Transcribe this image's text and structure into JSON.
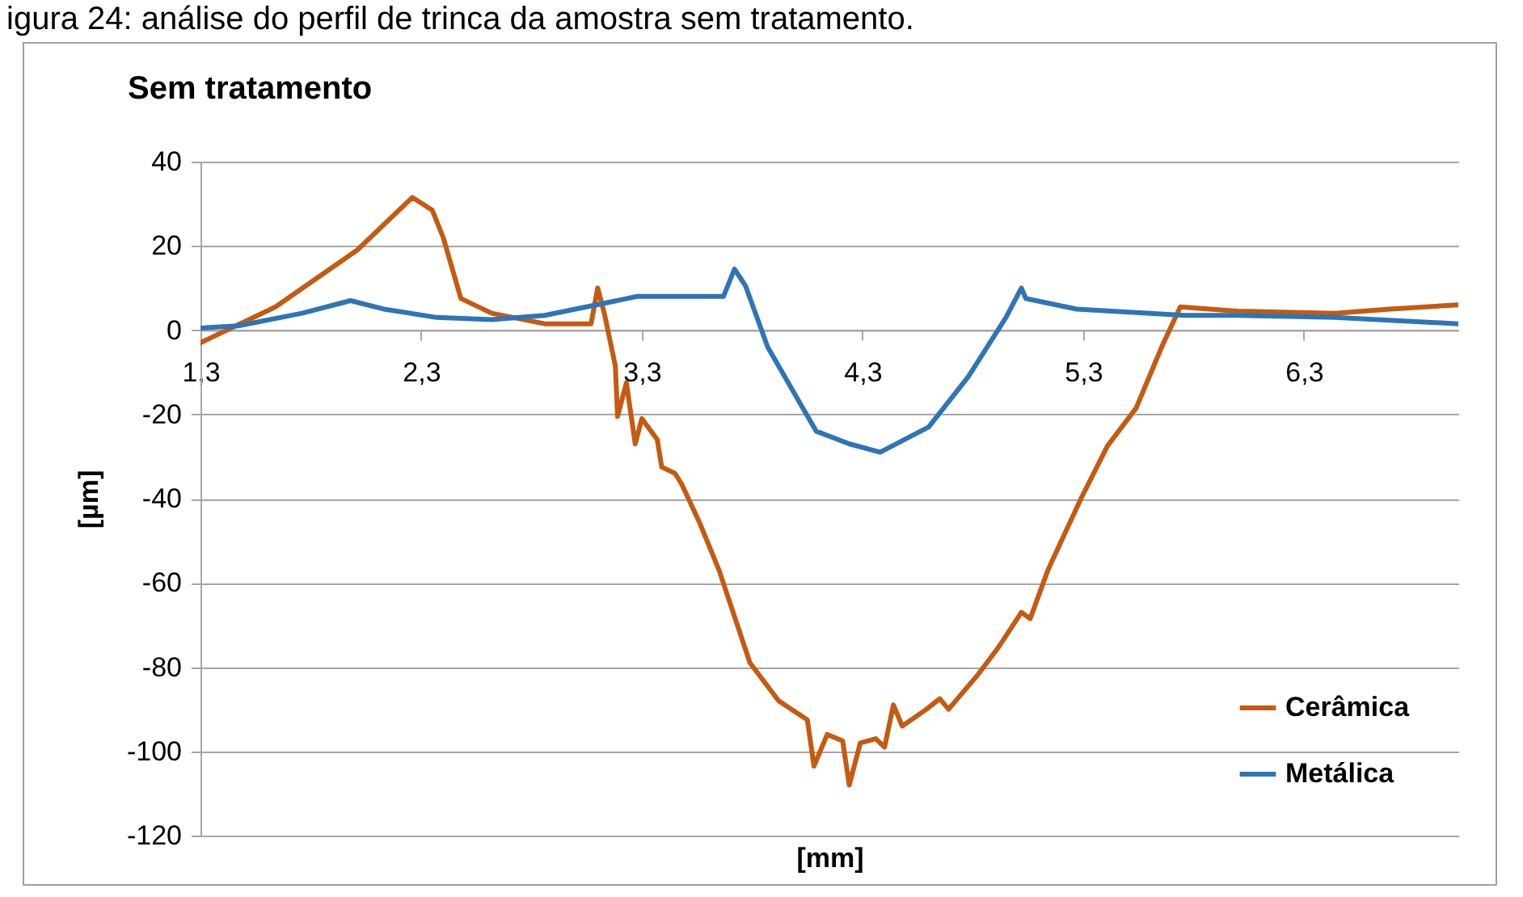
{
  "chart_data": {
    "type": "line",
    "title": "Sem tratamento",
    "xlabel": "[mm]",
    "ylabel": "[µm]",
    "annotations": [
      "igura 24: análise do perfil de trinca da amostra sem tratamento."
    ],
    "xlim": [
      1.3,
      7.0
    ],
    "xticks": [
      {
        "value": 1.3,
        "label": "1,3"
      },
      {
        "value": 2.3,
        "label": "2,3"
      },
      {
        "value": 3.3,
        "label": "3,3"
      },
      {
        "value": 4.3,
        "label": "4,3"
      },
      {
        "value": 5.3,
        "label": "5,3"
      },
      {
        "value": 6.3,
        "label": "6,3"
      }
    ],
    "ylim": [
      -120,
      40
    ],
    "yticks": [
      -120,
      -100,
      -80,
      -60,
      -40,
      -20,
      0,
      20,
      40
    ],
    "grid": "y",
    "legend": "bottom right",
    "series": [
      {
        "name": "Cerâmica",
        "color": "#c55a11",
        "x": [
          1.3,
          1.64,
          2.01,
          2.26,
          2.35,
          2.4,
          2.48,
          2.62,
          2.86,
          3.07,
          3.1,
          3.13,
          3.18,
          3.19,
          3.23,
          3.27,
          3.3,
          3.37,
          3.39,
          3.45,
          3.48,
          3.56,
          3.65,
          3.79,
          3.92,
          4.05,
          4.08,
          4.14,
          4.21,
          4.24,
          4.29,
          4.36,
          4.4,
          4.44,
          4.48,
          4.59,
          4.65,
          4.69,
          4.82,
          4.92,
          5.02,
          5.06,
          5.14,
          5.29,
          5.41,
          5.54,
          5.66,
          5.74,
          6.0,
          6.44,
          6.69,
          7.0
        ],
        "values": [
          -3,
          5.5,
          19,
          31.5,
          28.5,
          22,
          7.5,
          4,
          1.5,
          1.5,
          10,
          4,
          -8.5,
          -20.5,
          -12.5,
          -27,
          -21,
          -26,
          -32.5,
          -34,
          -36.5,
          -45.5,
          -57,
          -79,
          -88,
          -92.5,
          -103.5,
          -96,
          -97.5,
          -108,
          -98,
          -97,
          -99,
          -89,
          -94,
          -90,
          -87.5,
          -90,
          -82,
          -75,
          -67,
          -68.5,
          -57,
          -40,
          -27.5,
          -18.5,
          -3.5,
          5.5,
          4.5,
          4,
          5,
          6
        ]
      },
      {
        "name": "Metálica",
        "color": "#2e75b6",
        "x": [
          1.3,
          1.47,
          1.76,
          1.98,
          2.13,
          2.37,
          2.62,
          2.86,
          3.28,
          3.67,
          3.72,
          3.77,
          3.87,
          4.09,
          4.24,
          4.38,
          4.6,
          4.78,
          4.95,
          5.02,
          5.04,
          5.27,
          5.76,
          6.0,
          6.44,
          7.0
        ],
        "values": [
          0.5,
          1,
          4,
          7,
          5,
          3,
          2.5,
          3.5,
          8,
          8,
          14.5,
          10.5,
          -4,
          -24,
          -27,
          -29,
          -23,
          -11,
          3,
          10,
          7.5,
          5,
          3.5,
          3.5,
          3,
          1.5
        ]
      }
    ]
  }
}
